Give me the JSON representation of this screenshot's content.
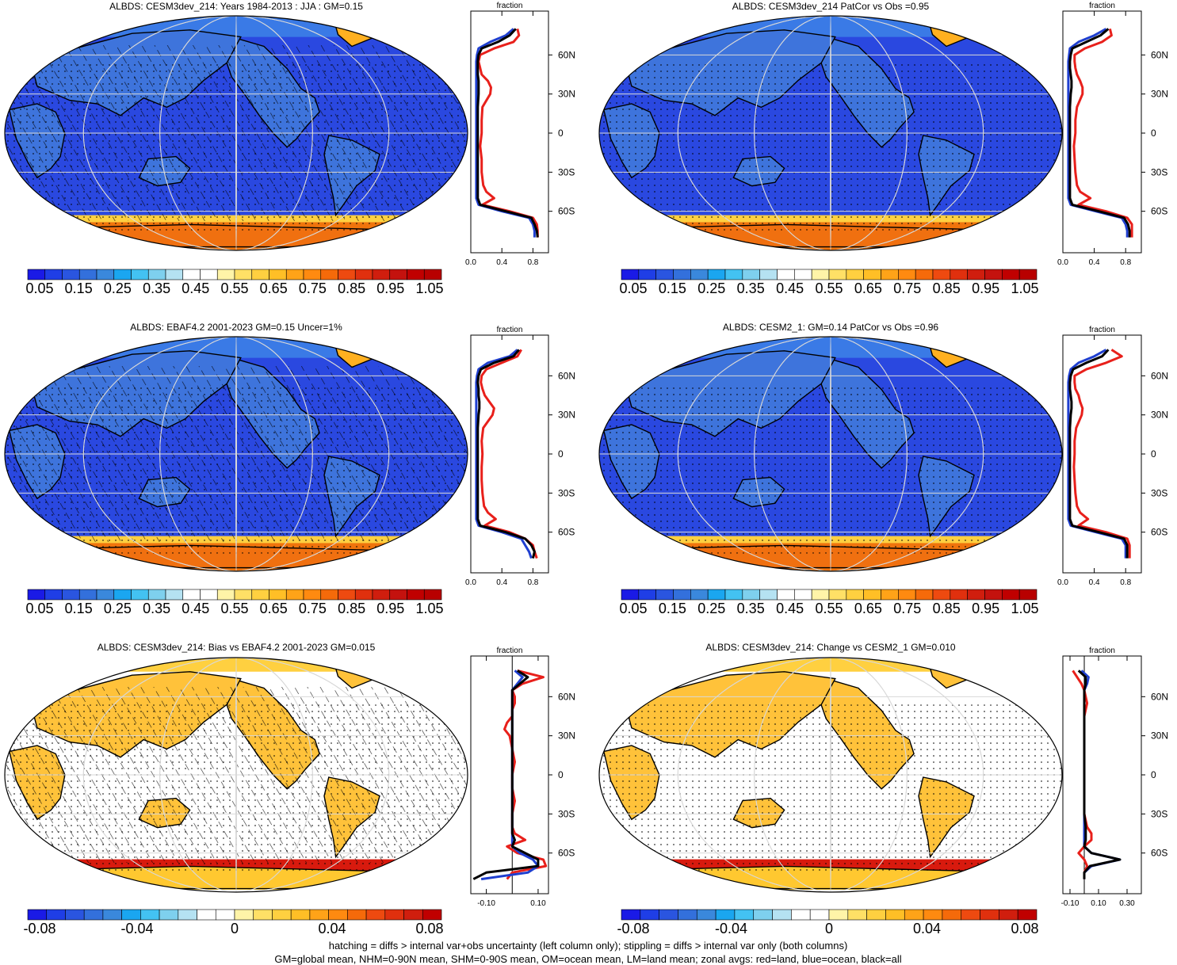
{
  "footer": {
    "line1": "hatching = diffs > internal var+obs uncertainty (left column only); stippling = diffs > internal var only (both columns)",
    "line2": "GM=global mean, NHM=0-90N mean, SHM=0-90S mean, OM=ocean mean, LM=land mean; zonal avgs: red=land, blue=ocean, black=all"
  },
  "colors": {
    "land": "#e8201b",
    "ocean": "#1f3fd0",
    "all": "#000000"
  },
  "abs_colorbar": {
    "labels": [
      "0.05",
      "0.15",
      "0.25",
      "0.35",
      "0.45",
      "0.55",
      "0.65",
      "0.75",
      "0.85",
      "0.95",
      "1.05"
    ],
    "colors": [
      "#1a1ae6",
      "#1f3ee6",
      "#2a55e0",
      "#3370dc",
      "#3a88dc",
      "#1aa6f0",
      "#43c2f2",
      "#7ed0ee",
      "#b5e2f2",
      "#ffffff",
      "#ffffff",
      "#fff4a8",
      "#ffe066",
      "#ffd040",
      "#ffbf26",
      "#ffa318",
      "#ff8a10",
      "#f56a0a",
      "#ee4a10",
      "#e0300e",
      "#d01e0e",
      "#c4120e",
      "#c00000",
      "#b80000"
    ]
  },
  "diff_colorbar": {
    "labels": [
      "-0.08",
      "-0.04",
      "0",
      "0.04",
      "0.08"
    ],
    "colors": [
      "#1a1ae6",
      "#1f3ee6",
      "#2a55e0",
      "#3370dc",
      "#3a88dc",
      "#1aa6f0",
      "#43c2f2",
      "#7ed0ee",
      "#b5e2f2",
      "#ffffff",
      "#ffffff",
      "#fff4a8",
      "#ffe066",
      "#ffd040",
      "#ffbf26",
      "#ffa318",
      "#ff8a10",
      "#f56a0a",
      "#ee4a10",
      "#e0300e",
      "#d01e0e",
      "#c00000"
    ]
  },
  "chart_data": [
    {
      "type": "heatmap",
      "title": "ALBDS: CESM3dev_214: Years 1984-2013 : JJA : GM=0.15",
      "theme": "abs",
      "zonal": {
        "title": "fraction",
        "xticks": [
          "0.0",
          "0.4",
          "0.8"
        ],
        "xlim": [
          0,
          1
        ],
        "yticks": [
          "60N",
          "30N",
          "0",
          "30S",
          "60S"
        ],
        "lat": [
          80,
          75,
          70,
          65,
          60,
          55,
          50,
          45,
          40,
          35,
          30,
          20,
          10,
          0,
          -10,
          -20,
          -30,
          -40,
          -45,
          -50,
          -55,
          -60,
          -65,
          -70,
          -75,
          -80
        ],
        "land": [
          0.6,
          0.62,
          0.55,
          0.3,
          0.12,
          0.1,
          0.12,
          0.14,
          0.22,
          0.26,
          0.25,
          0.15,
          0.14,
          0.14,
          0.12,
          0.14,
          0.14,
          0.16,
          0.2,
          0.3,
          0.15,
          0.5,
          0.8,
          0.85,
          0.86,
          0.86
        ],
        "ocean": [
          0.55,
          0.45,
          0.25,
          0.1,
          0.08,
          0.07,
          0.07,
          0.07,
          0.07,
          0.07,
          0.07,
          0.07,
          0.07,
          0.07,
          0.07,
          0.07,
          0.07,
          0.07,
          0.07,
          0.07,
          0.1,
          0.4,
          0.75,
          0.8,
          0.82,
          0.82
        ],
        "all": [
          0.58,
          0.5,
          0.35,
          0.14,
          0.1,
          0.09,
          0.09,
          0.09,
          0.1,
          0.1,
          0.1,
          0.09,
          0.09,
          0.09,
          0.09,
          0.09,
          0.09,
          0.09,
          0.09,
          0.09,
          0.12,
          0.45,
          0.78,
          0.82,
          0.85,
          0.86
        ]
      }
    },
    {
      "type": "heatmap",
      "title": "ALBDS: CESM3dev_214 PatCor vs Obs =0.95",
      "theme": "abs",
      "zonal": {
        "title": "fraction",
        "xticks": [
          "0.0",
          "0.4",
          "0.8"
        ],
        "xlim": [
          0,
          1
        ],
        "yticks": [
          "60N",
          "30N",
          "0",
          "30S",
          "60S"
        ],
        "lat": [
          80,
          75,
          70,
          65,
          60,
          55,
          50,
          45,
          40,
          35,
          30,
          20,
          10,
          0,
          -10,
          -20,
          -30,
          -40,
          -45,
          -50,
          -55,
          -60,
          -65,
          -70,
          -75,
          -80
        ],
        "land": [
          0.6,
          0.62,
          0.5,
          0.28,
          0.15,
          0.15,
          0.16,
          0.18,
          0.22,
          0.25,
          0.25,
          0.18,
          0.16,
          0.16,
          0.14,
          0.15,
          0.16,
          0.18,
          0.22,
          0.35,
          0.2,
          0.55,
          0.82,
          0.88,
          0.88,
          0.88
        ],
        "ocean": [
          0.55,
          0.4,
          0.2,
          0.09,
          0.08,
          0.07,
          0.07,
          0.07,
          0.07,
          0.07,
          0.07,
          0.07,
          0.07,
          0.07,
          0.07,
          0.07,
          0.07,
          0.07,
          0.07,
          0.07,
          0.1,
          0.42,
          0.75,
          0.8,
          0.82,
          0.82
        ],
        "all": [
          0.58,
          0.48,
          0.3,
          0.12,
          0.1,
          0.09,
          0.09,
          0.1,
          0.11,
          0.11,
          0.1,
          0.09,
          0.09,
          0.09,
          0.09,
          0.09,
          0.09,
          0.09,
          0.09,
          0.09,
          0.12,
          0.46,
          0.78,
          0.83,
          0.85,
          0.85
        ]
      }
    },
    {
      "type": "heatmap",
      "title": "ALBDS: EBAF4.2 2001-2023 GM=0.15 Uncer=1%",
      "theme": "abs",
      "zonal": {
        "title": "fraction",
        "xticks": [
          "0.0",
          "0.4",
          "0.8"
        ],
        "xlim": [
          0,
          1
        ],
        "yticks": [
          "60N",
          "30N",
          "0",
          "30S",
          "60S"
        ],
        "lat": [
          80,
          75,
          70,
          65,
          60,
          55,
          50,
          45,
          40,
          35,
          30,
          20,
          10,
          0,
          -10,
          -20,
          -30,
          -40,
          -45,
          -50,
          -55,
          -60,
          -65,
          -70,
          -75,
          -80
        ],
        "land": [
          0.65,
          0.6,
          0.4,
          0.2,
          0.14,
          0.13,
          0.15,
          0.18,
          0.24,
          0.3,
          0.28,
          0.16,
          0.14,
          0.15,
          0.14,
          0.14,
          0.15,
          0.17,
          0.22,
          0.32,
          0.18,
          0.5,
          0.7,
          0.8,
          0.82,
          0.85
        ],
        "ocean": [
          0.6,
          0.5,
          0.22,
          0.1,
          0.08,
          0.07,
          0.07,
          0.07,
          0.07,
          0.07,
          0.07,
          0.07,
          0.07,
          0.07,
          0.07,
          0.07,
          0.07,
          0.07,
          0.07,
          0.07,
          0.1,
          0.4,
          0.65,
          0.7,
          0.75,
          0.78
        ],
        "all": [
          0.62,
          0.55,
          0.3,
          0.13,
          0.1,
          0.09,
          0.1,
          0.1,
          0.11,
          0.11,
          0.1,
          0.09,
          0.09,
          0.09,
          0.09,
          0.09,
          0.09,
          0.09,
          0.09,
          0.09,
          0.12,
          0.45,
          0.7,
          0.78,
          0.82,
          0.8
        ]
      }
    },
    {
      "type": "heatmap",
      "title": "ALBDS: CESM2_1: GM=0.14 PatCor vs Obs =0.96",
      "theme": "abs",
      "zonal": {
        "title": "fraction",
        "xticks": [
          "0.0",
          "0.4",
          "0.8"
        ],
        "xlim": [
          0,
          1
        ],
        "yticks": [
          "60N",
          "30N",
          "0",
          "30S",
          "60S"
        ],
        "lat": [
          80,
          75,
          70,
          65,
          60,
          55,
          50,
          45,
          40,
          35,
          30,
          20,
          10,
          0,
          -10,
          -20,
          -30,
          -40,
          -45,
          -50,
          -55,
          -60,
          -65,
          -70,
          -75,
          -80
        ],
        "land": [
          0.62,
          0.75,
          0.55,
          0.3,
          0.15,
          0.15,
          0.16,
          0.2,
          0.22,
          0.25,
          0.24,
          0.17,
          0.15,
          0.15,
          0.14,
          0.15,
          0.16,
          0.18,
          0.22,
          0.32,
          0.2,
          0.55,
          0.82,
          0.85,
          0.85,
          0.85
        ],
        "ocean": [
          0.55,
          0.4,
          0.2,
          0.1,
          0.08,
          0.07,
          0.07,
          0.07,
          0.07,
          0.07,
          0.07,
          0.07,
          0.07,
          0.07,
          0.07,
          0.07,
          0.07,
          0.07,
          0.07,
          0.07,
          0.1,
          0.42,
          0.75,
          0.8,
          0.8,
          0.8
        ],
        "all": [
          0.58,
          0.5,
          0.3,
          0.13,
          0.1,
          0.09,
          0.09,
          0.1,
          0.11,
          0.11,
          0.1,
          0.09,
          0.09,
          0.09,
          0.09,
          0.09,
          0.09,
          0.09,
          0.09,
          0.09,
          0.12,
          0.46,
          0.78,
          0.82,
          0.82,
          0.82
        ]
      }
    },
    {
      "type": "heatmap",
      "title": "ALBDS: CESM3dev_214: Bias vs EBAF4.2 2001-2023 GM=0.015",
      "theme": "diff",
      "zonal": {
        "title": "fraction",
        "xticks": [
          "-0.10",
          "0.10"
        ],
        "xtickvals": [
          -0.1,
          0.1
        ],
        "xlim": [
          -0.16,
          0.14
        ],
        "yticks": [
          "60N",
          "30N",
          "0",
          "30S",
          "60S"
        ],
        "lat": [
          80,
          75,
          70,
          65,
          60,
          55,
          50,
          45,
          40,
          35,
          30,
          20,
          10,
          0,
          -10,
          -20,
          -30,
          -40,
          -45,
          -50,
          -55,
          -60,
          -65,
          -70,
          -75,
          -80
        ],
        "land": [
          0.02,
          0.12,
          0.04,
          0.0,
          0.01,
          0.01,
          0.0,
          0.0,
          -0.02,
          -0.03,
          -0.01,
          0.0,
          0.01,
          0.0,
          0.0,
          0.01,
          0.0,
          0.0,
          0.01,
          0.05,
          -0.02,
          0.02,
          0.12,
          0.13,
          0.0,
          -0.02
        ],
        "ocean": [
          0.01,
          0.04,
          0.02,
          0.0,
          0.0,
          0.0,
          0.0,
          0.0,
          0.0,
          0.0,
          0.0,
          0.0,
          0.0,
          0.0,
          0.0,
          0.0,
          0.0,
          0.0,
          0.0,
          0.0,
          0.0,
          0.03,
          0.08,
          0.1,
          0.06,
          -0.12
        ],
        "all": [
          0.02,
          0.06,
          0.03,
          0.0,
          0.0,
          0.0,
          0.0,
          0.0,
          0.0,
          0.0,
          0.0,
          0.0,
          0.0,
          0.0,
          0.0,
          0.0,
          0.0,
          0.0,
          0.0,
          0.01,
          0.0,
          0.05,
          0.1,
          0.1,
          -0.1,
          -0.15
        ]
      }
    },
    {
      "type": "heatmap",
      "title": "ALBDS: CESM3dev_214: Change vs CESM2_1 GM=0.010",
      "theme": "diff",
      "zonal": {
        "title": "fraction",
        "xticks": [
          "-0.10",
          "0.10",
          "0.30"
        ],
        "xtickvals": [
          -0.1,
          0.1,
          0.3
        ],
        "xlim": [
          -0.15,
          0.4
        ],
        "yticks": [
          "60N",
          "30N",
          "0",
          "30S",
          "60S"
        ],
        "lat": [
          80,
          75,
          70,
          65,
          60,
          55,
          50,
          45,
          40,
          35,
          30,
          20,
          10,
          0,
          -10,
          -20,
          -30,
          -40,
          -45,
          -50,
          -55,
          -60,
          -65,
          -70,
          -75,
          -80
        ],
        "land": [
          -0.08,
          -0.05,
          -0.02,
          0.0,
          0.01,
          0.02,
          0.01,
          0.0,
          0.0,
          0.0,
          0.0,
          0.0,
          0.0,
          0.0,
          0.0,
          0.0,
          0.0,
          0.02,
          0.05,
          0.05,
          0.0,
          -0.04,
          0.0,
          0.02,
          0.0,
          0.0
        ],
        "ocean": [
          -0.02,
          0.03,
          0.02,
          0.0,
          0.0,
          0.0,
          0.0,
          0.0,
          0.0,
          0.0,
          0.0,
          0.0,
          0.0,
          0.0,
          0.0,
          0.0,
          0.0,
          0.0,
          0.0,
          0.0,
          0.0,
          0.05,
          0.25,
          0.05,
          0.0,
          0.0
        ],
        "all": [
          -0.04,
          0.01,
          0.01,
          0.0,
          0.0,
          0.0,
          0.0,
          0.0,
          0.0,
          0.0,
          0.0,
          0.0,
          0.0,
          0.0,
          0.0,
          0.0,
          0.0,
          0.01,
          0.01,
          0.01,
          0.0,
          0.05,
          0.25,
          0.04,
          0.0,
          0.0
        ]
      }
    }
  ]
}
